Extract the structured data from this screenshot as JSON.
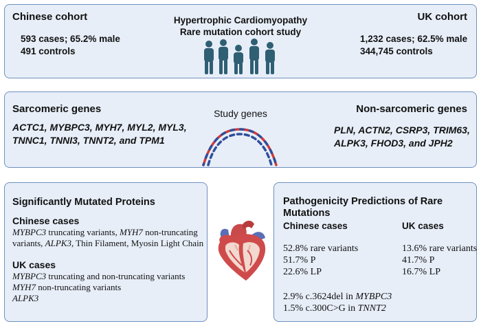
{
  "cohorts": {
    "chinese": {
      "title": "Chinese cohort",
      "cases": "593 cases; 65.2% male",
      "controls": "491 controls"
    },
    "center": {
      "title_line1": "Hypertrophic Cardiomyopathy",
      "title_line2": "Rare mutation cohort study"
    },
    "uk": {
      "title": "UK cohort",
      "cases": "1,232 cases; 62.5% male",
      "controls": "344,745 controls"
    }
  },
  "genes": {
    "sarcomeric": {
      "title": "Sarcomeric genes",
      "line1": "ACTC1, MYBPC3, MYH7, MYL2, MYL3,",
      "line2": "TNNC1, TNNI3, TNNT2, and TPM1"
    },
    "center_label": "Study genes",
    "non_sarcomeric": {
      "title": "Non-sarcomeric genes",
      "line1": "PLN, ACTN2, CSRP3, TRIM63,",
      "line2": "ALPK3, FHOD3, and JPH2"
    }
  },
  "mutated": {
    "title": "Significantly Mutated Proteins",
    "chinese": {
      "heading": "Chinese cases",
      "gene1": "MYBPC3",
      "text1": " truncating variants, ",
      "gene2": "MYH7",
      "text2": " non-truncating",
      "text3": "variants, ",
      "gene3": "ALPK3,",
      "text4": " Thin Filament, Myosin Light Chain"
    },
    "uk": {
      "heading": "UK cases",
      "gene1": "MYBPC3",
      "text1": " truncating and non-truncating variants",
      "gene2": "MYH7",
      "text2": " non-truncating variants",
      "gene3": "ALPK3"
    }
  },
  "pathogenicity": {
    "title_line1": "Pathogenicity Predictions of Rare",
    "title_line2": "Mutations",
    "chinese": {
      "heading": "Chinese cases",
      "rare": "52.8% rare variants",
      "p": "51.7% P",
      "lp": "22.6% LP"
    },
    "uk": {
      "heading": "UK cases",
      "rare": "13.6% rare variants",
      "p": "41.7% P",
      "lp": "16.7% LP"
    },
    "variant1_text": "2.9% c.3624del in ",
    "variant1_gene": "MYBPC3",
    "variant2_text": "1.5% c.300C>G in ",
    "variant2_gene": "TNNT2"
  },
  "colors": {
    "box_fill": "#e7eef8",
    "box_border": "#6f8fbf",
    "people": "#2f5f73",
    "dna_red": "#d23a3a",
    "dna_blue": "#2f4f9a"
  }
}
